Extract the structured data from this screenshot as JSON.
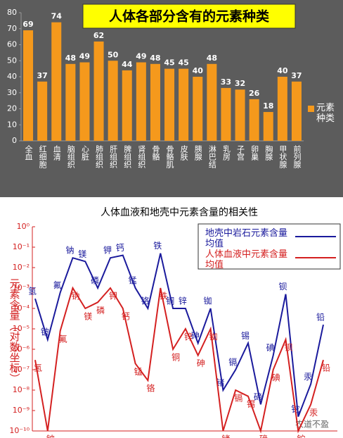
{
  "chart_data": [
    {
      "type": "bar",
      "title": "人体各部分含有的元素种类",
      "categories": [
        "全血",
        "红细胞",
        "血清",
        "脑组织",
        "心脏",
        "肺组织",
        "肝组织",
        "脾组织",
        "肾组织",
        "骨骼",
        "骨骼肌",
        "皮肤",
        "胰腺",
        "淋巴结",
        "乳房",
        "子宫",
        "卵巢",
        "胸腺",
        "甲状腺",
        "前列腺"
      ],
      "series": [
        {
          "name": "元素种类",
          "color": "#f5991c",
          "values": [
            69,
            37,
            74,
            48,
            49,
            62,
            50,
            44,
            49,
            48,
            45,
            45,
            40,
            48,
            33,
            32,
            26,
            18,
            40,
            37
          ]
        }
      ],
      "ylim": [
        0,
        80
      ],
      "yticks": [
        0,
        10,
        20,
        30,
        40,
        50,
        60,
        70,
        80
      ],
      "grid": false,
      "legend": "right"
    },
    {
      "type": "line",
      "title": "人体血液和地壳中元素含量的相关性",
      "ylabel": "元素含量（对数坐标）",
      "categories": [
        "氢",
        "铍",
        "氟",
        "钠",
        "镁",
        "磷",
        "钾",
        "钙",
        "锰",
        "铬",
        "铁",
        "铜",
        "锌",
        "砷",
        "铷",
        "锗",
        "镉",
        "锡",
        "碲",
        "碘",
        "钡",
        "铊",
        "汞",
        "铅"
      ],
      "series": [
        {
          "name": "地壳中岩石元素含量均值",
          "color": "#1a1a9c",
          "values": [
            0.0003,
            3e-06,
            0.0006,
            0.03,
            0.02,
            0.001,
            0.03,
            0.04,
            0.001,
            0.0001,
            0.05,
            0.0001,
            0.0001,
            2e-06,
            0.0001,
            1e-08,
            1e-07,
            2e-06,
            2e-09,
            5e-07,
            0.0005,
            5e-10,
            2e-08,
            1.6e-05
          ]
        },
        {
          "name": "人体血液中元素含量均值",
          "color": "#d42020",
          "values": [
            3e-07,
            1e-10,
            8e-06,
            0.001,
            0.0001,
            0.0002,
            0.001,
            0.0001,
            2e-07,
            3e-08,
            0.001,
            1e-06,
            1e-05,
            5e-07,
            1e-05,
            1e-10,
            1e-08,
            5e-09,
            1e-10,
            1e-07,
            3e-06,
            1e-10,
            2e-09,
            3e-07
          ]
        }
      ],
      "ylim": [
        1e-10,
        1
      ],
      "log_scale": true,
      "legend": "upper right",
      "yticks": [
        {
          "value": 1,
          "label": "10⁰"
        },
        {
          "value": 0.1,
          "label": "10⁻¹"
        },
        {
          "value": 0.01,
          "label": "10⁻²"
        },
        {
          "value": 0.001,
          "label": "10⁻³"
        },
        {
          "value": 0.0001,
          "label": "10⁻⁴"
        },
        {
          "value": 1e-05,
          "label": "10⁻⁵"
        },
        {
          "value": 1e-06,
          "label": "10⁻⁶"
        },
        {
          "value": 1e-07,
          "label": "10⁻⁷"
        },
        {
          "value": 1e-08,
          "label": "10⁻⁸"
        },
        {
          "value": 1e-09,
          "label": "10⁻⁹"
        },
        {
          "value": 1e-10,
          "label": "10⁻¹⁰"
        }
      ],
      "watermark": "农道不盈"
    }
  ]
}
